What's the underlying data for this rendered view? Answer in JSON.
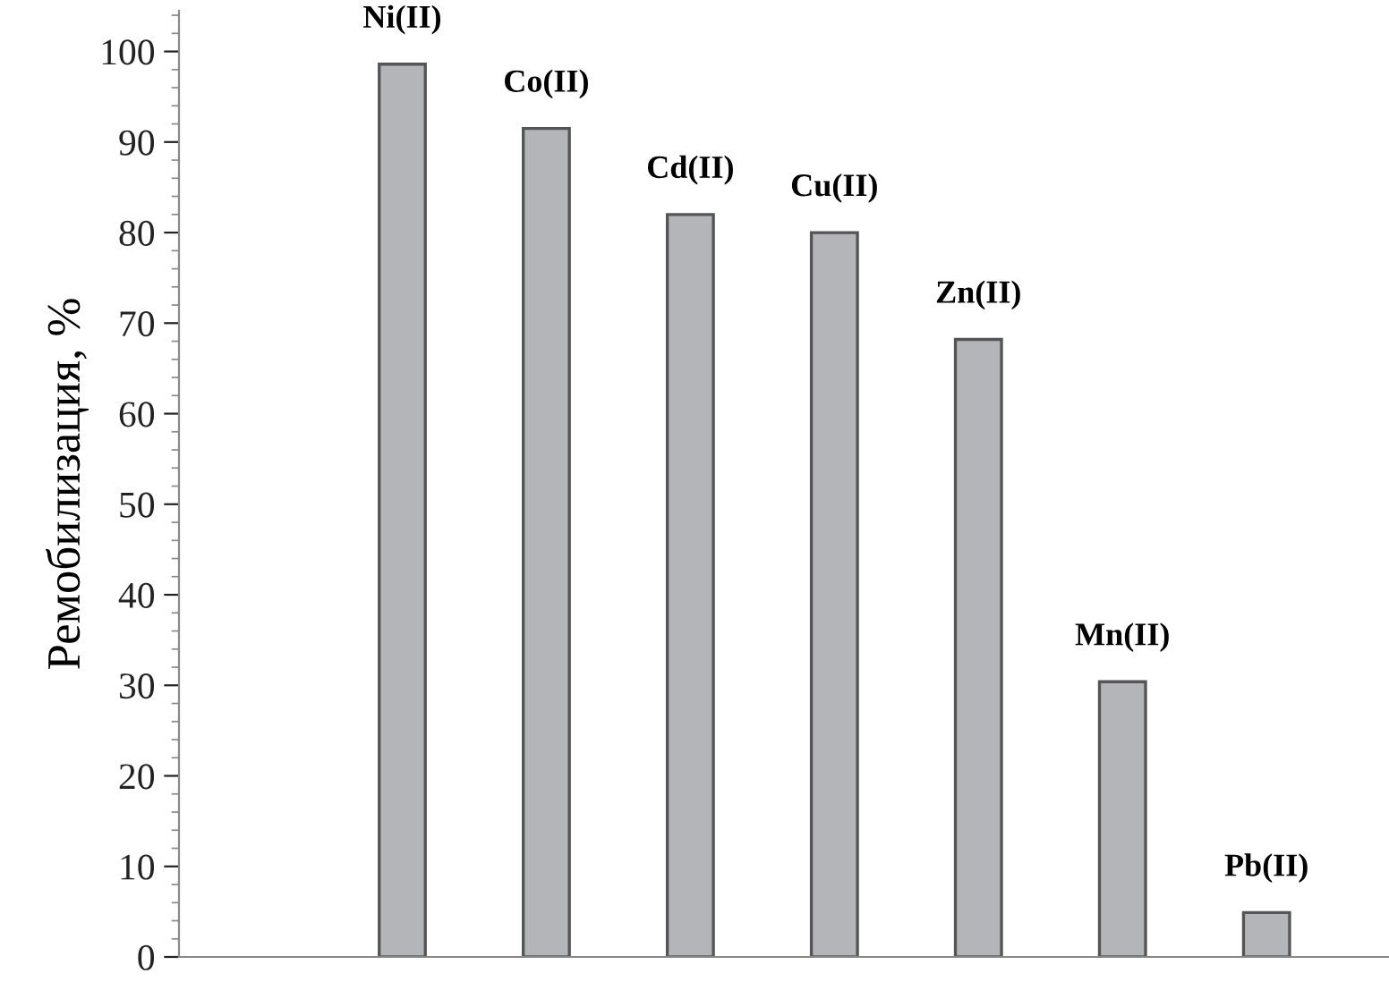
{
  "chart_data": {
    "type": "bar",
    "ylabel": "Ремобилизация, %",
    "categories": [
      "Ni(II)",
      "Co(II)",
      "Cd(II)",
      "Cu(II)",
      "Zn(II)",
      "Mn(II)",
      "Pb(II)"
    ],
    "values": [
      98.6,
      91.5,
      82,
      80,
      68.2,
      30.4,
      4.9
    ],
    "color": "#b4b5b8",
    "ylim": [
      0,
      104.5
    ],
    "yticks": [
      0,
      10,
      20,
      30,
      40,
      50,
      60,
      70,
      80,
      90,
      100
    ],
    "grid": false
  }
}
